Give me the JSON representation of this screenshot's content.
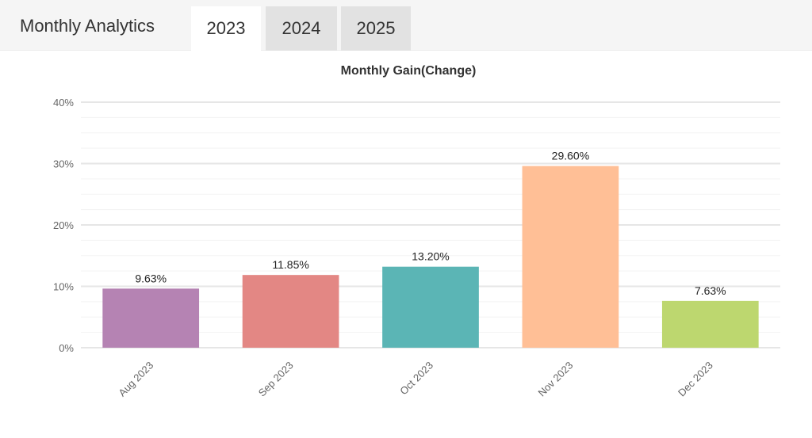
{
  "header": {
    "title": "Monthly Analytics",
    "tabs": [
      {
        "label": "2023",
        "active": true
      },
      {
        "label": "2024",
        "active": false
      },
      {
        "label": "2025",
        "active": false
      }
    ]
  },
  "chart_data": {
    "type": "bar",
    "title": "Monthly Gain(Change)",
    "xlabel": "",
    "ylabel": "",
    "categories": [
      "Aug 2023",
      "Sep 2023",
      "Oct 2023",
      "Nov 2023",
      "Dec 2023"
    ],
    "values": [
      9.63,
      11.85,
      13.2,
      29.6,
      7.63
    ],
    "value_labels": [
      "9.63%",
      "11.85%",
      "13.20%",
      "29.60%",
      "7.63%"
    ],
    "colors": [
      "#b583b3",
      "#e38784",
      "#5bb5b5",
      "#ffbf96",
      "#bdd76f"
    ],
    "ylim": [
      0,
      40
    ],
    "yticks": [
      0,
      10,
      20,
      30,
      40
    ],
    "ytick_labels": [
      "0%",
      "10%",
      "20%",
      "30%",
      "40%"
    ],
    "grid": true,
    "legend": "none"
  }
}
